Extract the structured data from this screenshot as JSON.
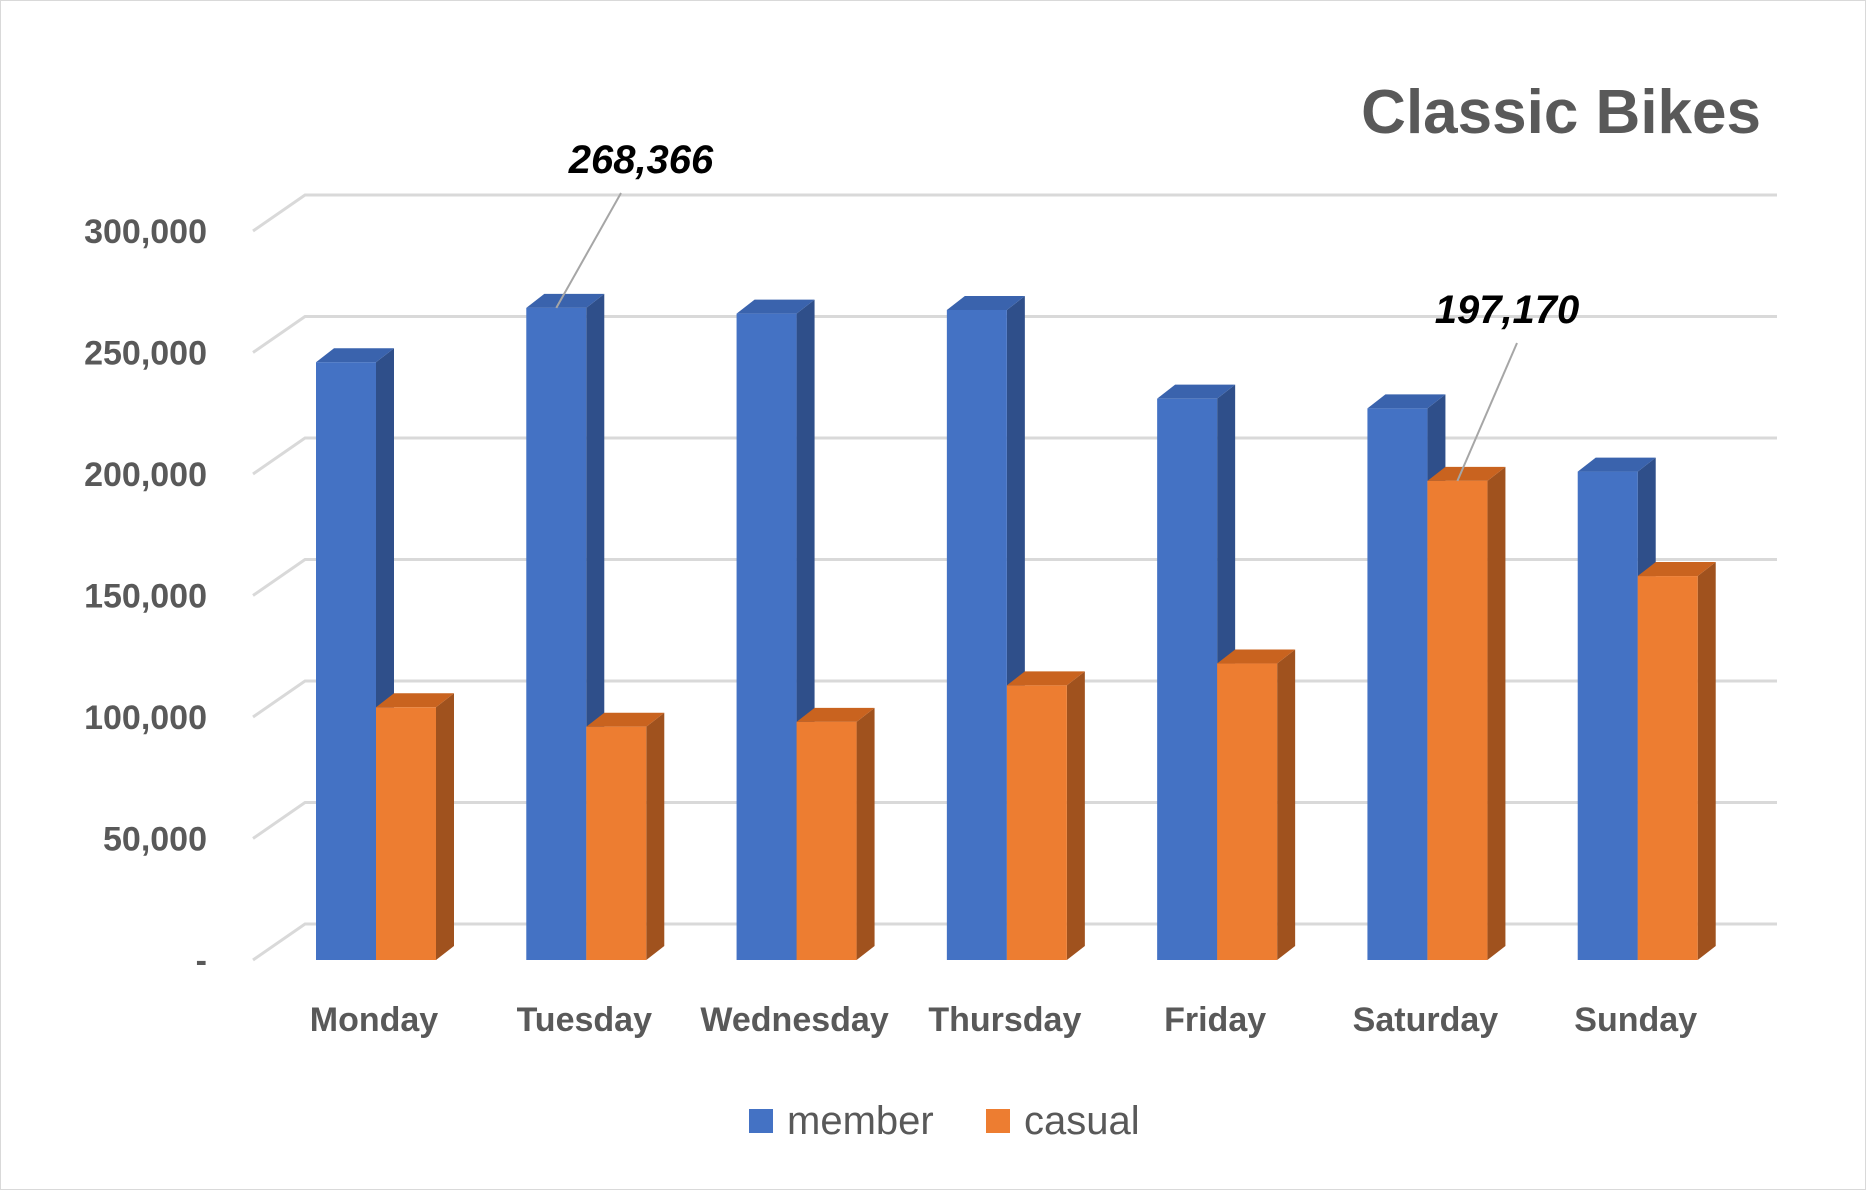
{
  "chart_data": {
    "type": "bar",
    "style": "3d-clustered-column",
    "title": "Classic Bikes",
    "categories": [
      "Monday",
      "Tuesday",
      "Wednesday",
      "Thursday",
      "Friday",
      "Saturday",
      "Sunday"
    ],
    "series": [
      {
        "name": "member",
        "color": "#4472C4",
        "side_color": "#2F4F8A",
        "top_color": "#3A63AD",
        "values": [
          246000,
          268366,
          266000,
          267500,
          231000,
          227000,
          201000
        ]
      },
      {
        "name": "casual",
        "color": "#ED7D31",
        "side_color": "#A0521E",
        "top_color": "#C9631F",
        "values": [
          104000,
          96000,
          98000,
          113000,
          122000,
          197170,
          158000
        ]
      }
    ],
    "ylim": [
      0,
      300000
    ],
    "yticks": [
      0,
      50000,
      100000,
      150000,
      200000,
      250000,
      300000
    ],
    "ytick_labels": [
      "-",
      "50,000",
      "100,000",
      "150,000",
      "200,000",
      "250,000",
      "300,000"
    ],
    "grid": true,
    "legend_position": "bottom",
    "annotations": [
      {
        "text": "268,366",
        "series": "member",
        "category": "Tuesday"
      },
      {
        "text": "197,170",
        "series": "casual",
        "category": "Saturday"
      }
    ]
  }
}
